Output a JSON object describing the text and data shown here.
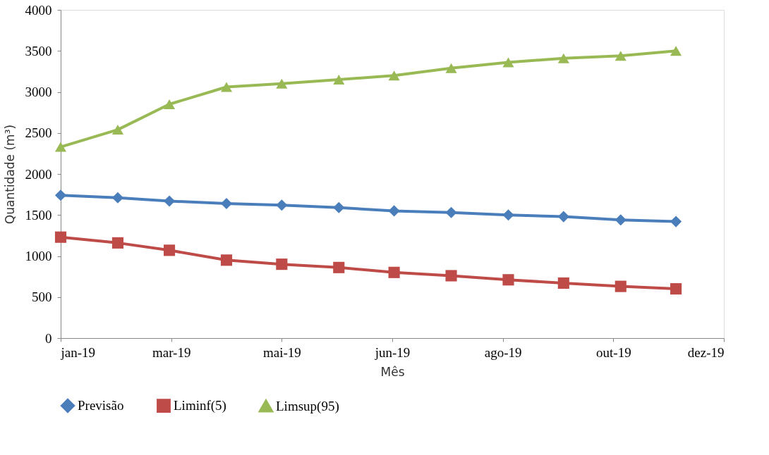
{
  "chart_data": {
    "type": "line",
    "xlabel": "Mês",
    "ylabel": "Quantidade (m³)",
    "x": [
      "2019-01-01",
      "2019-02-01",
      "2019-03-01",
      "2019-04-01",
      "2019-05-01",
      "2019-06-01",
      "2019-07-01",
      "2019-08-01",
      "2019-09-01",
      "2019-10-01",
      "2019-11-01",
      "2019-12-01"
    ],
    "xlim": [
      "2019-01-01",
      "2019-12-27"
    ],
    "xticks": [
      {
        "value": "2019-01-01",
        "label": "jan-19"
      },
      {
        "value": "2019-03-02",
        "label": "mar-19"
      },
      {
        "value": "2019-05-01",
        "label": "mai-19"
      },
      {
        "value": "2019-06-30",
        "label": "jun-19"
      },
      {
        "value": "2019-08-29",
        "label": "ago-19"
      },
      {
        "value": "2019-10-28",
        "label": "out-19"
      },
      {
        "value": "2019-12-27",
        "label": "dez-19"
      }
    ],
    "ylim": [
      0,
      4000
    ],
    "yticks": [
      0,
      500,
      1000,
      1500,
      2000,
      2500,
      3000,
      3500,
      4000
    ],
    "grid": false,
    "legend": "bottom",
    "series": [
      {
        "name": "Previsão",
        "color": "#4a7ebb",
        "marker": "diamond",
        "values": [
          1740,
          1710,
          1670,
          1640,
          1620,
          1590,
          1550,
          1530,
          1500,
          1480,
          1440,
          1420
        ]
      },
      {
        "name": "Liminf(5)",
        "color": "#be4b48",
        "marker": "square",
        "values": [
          1230,
          1160,
          1070,
          950,
          900,
          860,
          800,
          760,
          710,
          670,
          630,
          600
        ]
      },
      {
        "name": "Limsup(95)",
        "color": "#98b954",
        "marker": "triangle",
        "values": [
          2330,
          2540,
          2850,
          3060,
          3100,
          3150,
          3200,
          3290,
          3360,
          3410,
          3440,
          3500
        ]
      }
    ]
  }
}
